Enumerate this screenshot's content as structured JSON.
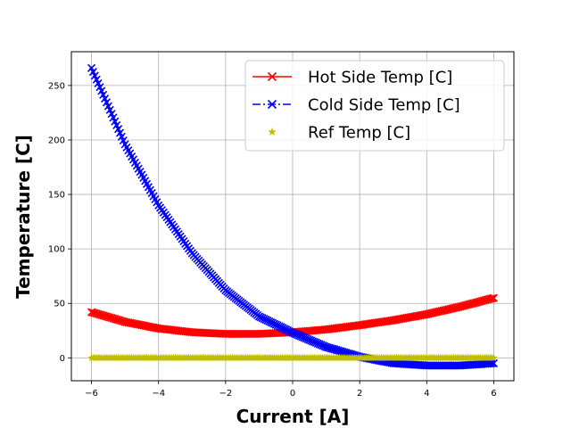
{
  "chart_data": {
    "type": "scatter",
    "title": "",
    "xlabel": "Current [A]",
    "ylabel": "Temperature [C]",
    "xlim": [
      -6.6,
      6.6
    ],
    "ylim": [
      -21,
      281
    ],
    "x_ticks": [
      -6,
      -4,
      -2,
      0,
      2,
      4,
      6
    ],
    "x_tick_labels": [
      "−6",
      "−4",
      "−2",
      "0",
      "2",
      "4",
      "6"
    ],
    "y_ticks": [
      0,
      50,
      100,
      150,
      200,
      250
    ],
    "y_tick_labels": [
      "0",
      "50",
      "100",
      "150",
      "200",
      "250"
    ],
    "grid": true,
    "legend_position": "top-right",
    "x": [
      -6,
      -5,
      -4,
      -3,
      -2,
      -1,
      0,
      1,
      2,
      3,
      4,
      5,
      6
    ],
    "series": [
      {
        "name": "Hot Side Temp [C]",
        "color": "#ff0000",
        "marker": "x",
        "linestyle": "solid",
        "values": [
          42,
          33,
          27,
          23.5,
          22,
          22,
          23.5,
          26,
          30,
          34.5,
          40,
          47,
          55
        ]
      },
      {
        "name": "Cold Side Temp [C]",
        "color": "#0000ff",
        "marker": "x",
        "linestyle": "dashdot",
        "values": [
          266,
          196,
          140,
          96,
          62,
          38,
          23,
          10,
          1,
          -5,
          -7,
          -7,
          -5
        ]
      },
      {
        "name": "Ref Temp [C]",
        "color": "#bfbf00",
        "marker": "star",
        "linestyle": "none",
        "values": [
          0,
          0,
          0,
          0,
          0,
          0,
          0,
          0,
          0,
          0,
          0,
          0,
          0
        ]
      }
    ]
  }
}
